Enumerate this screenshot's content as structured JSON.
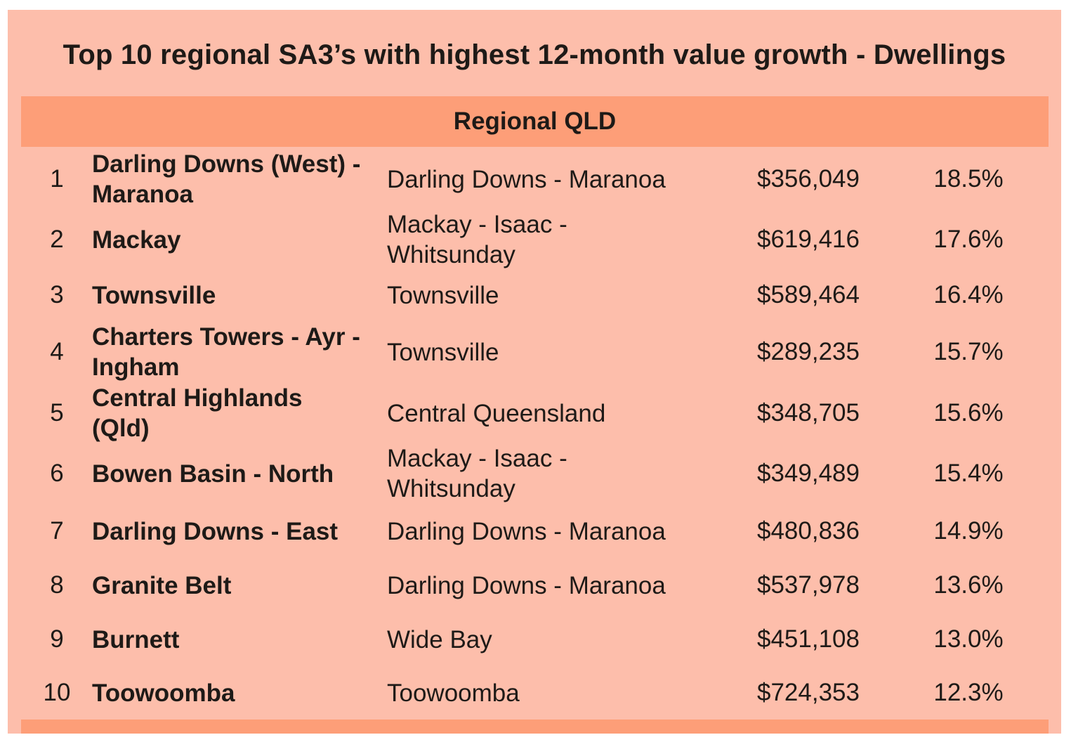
{
  "title": "Top 10 regional SA3’s with highest 12-month value growth - Dwellings",
  "region": "Regional QLD",
  "rows": [
    {
      "rank": "1",
      "sa3": "Darling Downs (West) - Maranoa",
      "sa4": "Darling Downs - Maranoa",
      "value": "$356,049",
      "growth": "18.5%"
    },
    {
      "rank": "2",
      "sa3": "Mackay",
      "sa4": "Mackay - Isaac - Whitsunday",
      "value": "$619,416",
      "growth": "17.6%"
    },
    {
      "rank": "3",
      "sa3": "Townsville",
      "sa4": "Townsville",
      "value": "$589,464",
      "growth": "16.4%"
    },
    {
      "rank": "4",
      "sa3": "Charters Towers - Ayr - Ingham",
      "sa4": "Townsville",
      "value": "$289,235",
      "growth": "15.7%"
    },
    {
      "rank": "5",
      "sa3": "Central Highlands (Qld)",
      "sa4": "Central Queensland",
      "value": "$348,705",
      "growth": "15.6%"
    },
    {
      "rank": "6",
      "sa3": "Bowen Basin - North",
      "sa4": "Mackay - Isaac - Whitsunday",
      "value": "$349,489",
      "growth": "15.4%"
    },
    {
      "rank": "7",
      "sa3": "Darling Downs - East",
      "sa4": "Darling Downs - Maranoa",
      "value": "$480,836",
      "growth": "14.9%"
    },
    {
      "rank": "8",
      "sa3": "Granite Belt",
      "sa4": "Darling Downs - Maranoa",
      "value": "$537,978",
      "growth": "13.6%"
    },
    {
      "rank": "9",
      "sa3": "Burnett",
      "sa4": "Wide Bay",
      "value": "$451,108",
      "growth": "13.0%"
    },
    {
      "rank": "10",
      "sa3": "Toowoomba",
      "sa4": "Toowoomba",
      "value": "$724,353",
      "growth": "12.3%"
    }
  ],
  "colors": {
    "panel_background": "#fdbeab",
    "header_bar": "#fd9e78",
    "text": "#1e1a17"
  }
}
